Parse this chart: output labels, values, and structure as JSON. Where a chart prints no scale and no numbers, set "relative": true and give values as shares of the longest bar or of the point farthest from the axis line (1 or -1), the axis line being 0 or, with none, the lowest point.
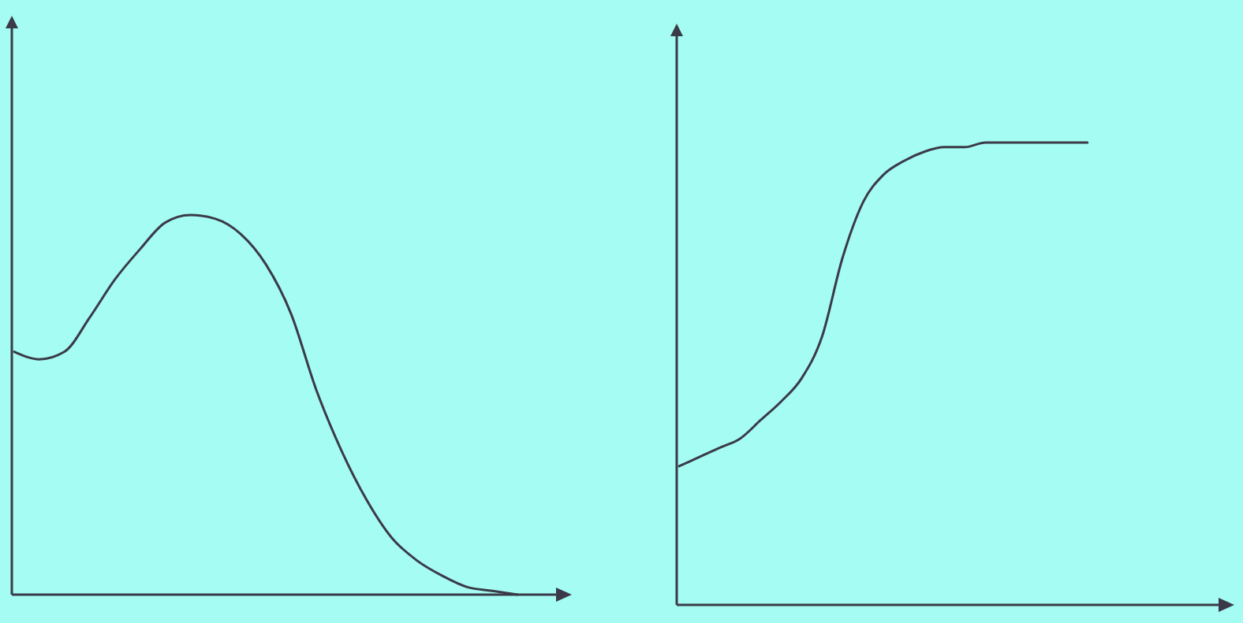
{
  "chart_data": [
    {
      "type": "line",
      "relative": true,
      "categories": [
        null,
        null,
        null,
        null,
        null,
        null,
        null,
        null,
        null,
        null,
        null,
        null,
        null,
        null,
        null,
        null,
        null,
        null,
        null,
        null,
        null,
        null,
        null
      ],
      "series": [
        {
          "color": "#3a3a48",
          "values": [
            0.64,
            0.62,
            0.64,
            0.73,
            0.83,
            0.91,
            0.98,
            1,
            0.99,
            0.95,
            0.87,
            0.74,
            0.54,
            0.38,
            0.25,
            0.15,
            0.09,
            0.05,
            0.02,
            0.01,
            0,
            null,
            null
          ]
        }
      ]
    },
    {
      "type": "line",
      "relative": true,
      "categories": [
        null,
        null,
        null,
        null,
        null,
        null,
        null,
        null,
        null,
        null,
        null,
        null,
        null,
        null,
        null,
        null,
        null,
        null,
        null,
        null,
        null,
        null,
        null,
        null,
        null,
        null,
        null,
        null
      ],
      "series": [
        {
          "color": "#3a3a48",
          "values": [
            0.3,
            0.32,
            0.34,
            0.36,
            0.4,
            0.44,
            0.49,
            0.58,
            0.75,
            0.87,
            0.93,
            0.96,
            0.98,
            0.99,
            0.99,
            1,
            1,
            1,
            1,
            1,
            1,
            null,
            null,
            null,
            null,
            null,
            null,
            null
          ]
        }
      ]
    }
  ]
}
